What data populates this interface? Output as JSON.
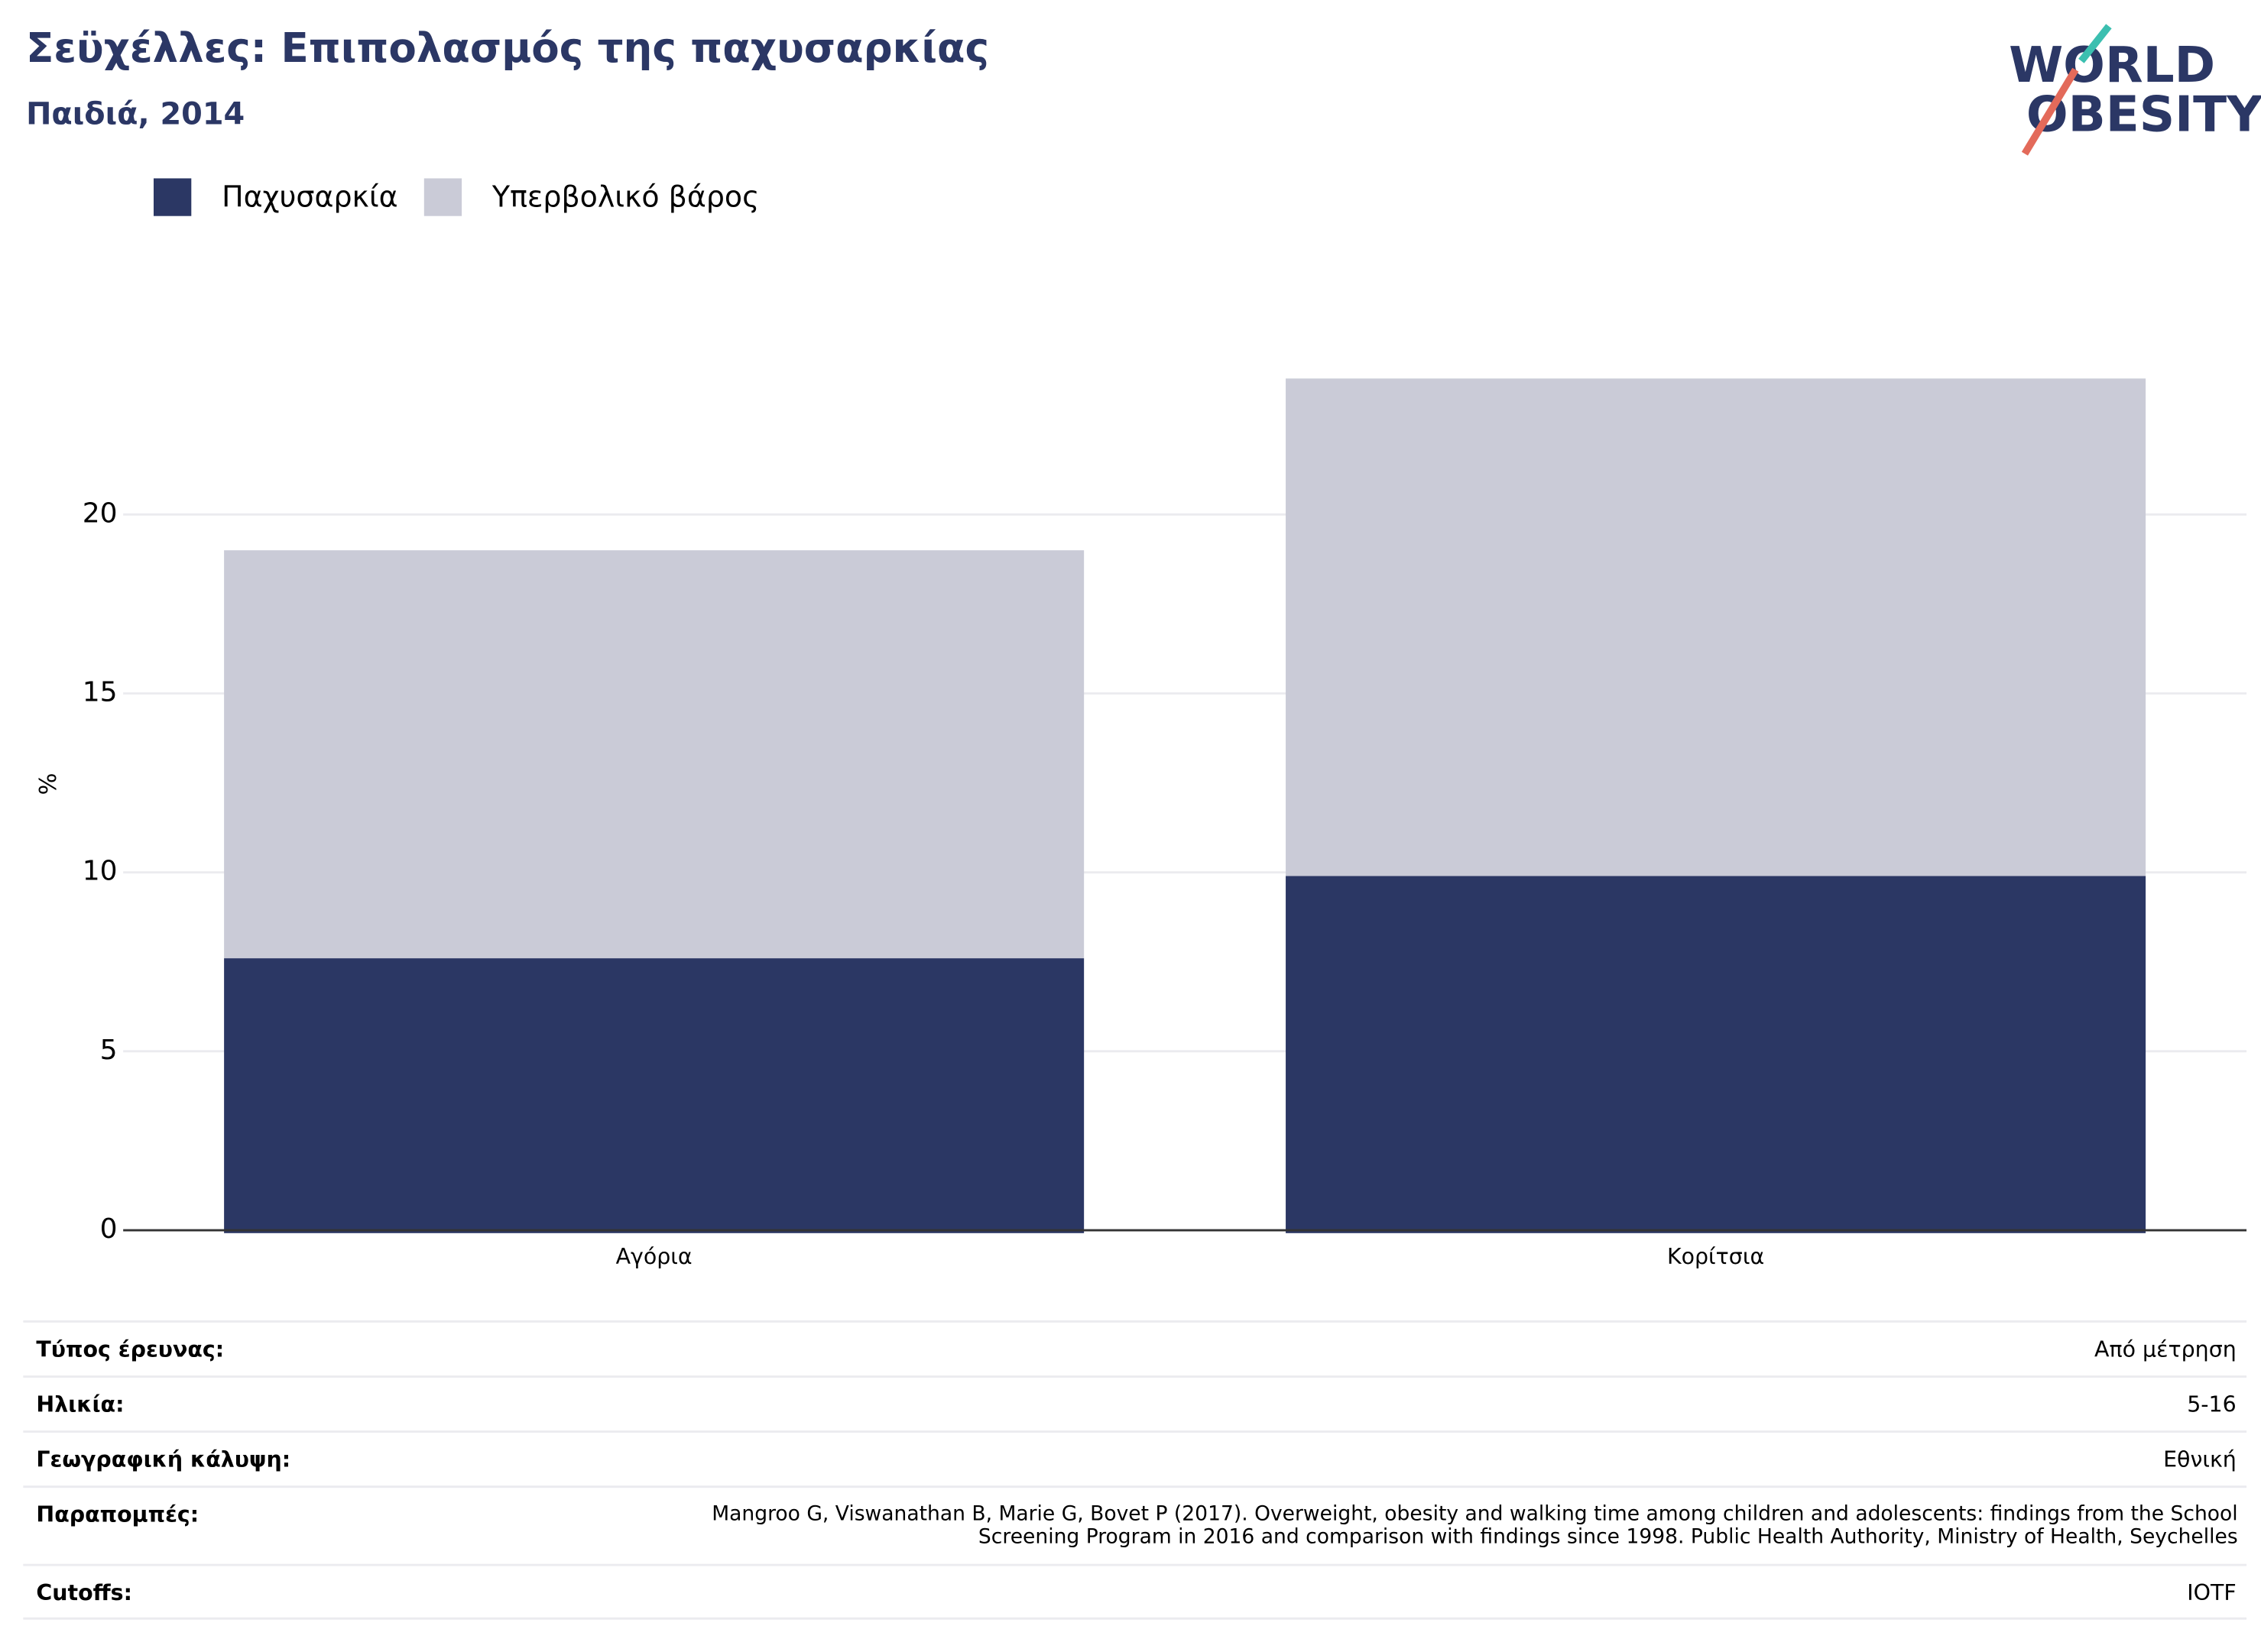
{
  "chart_data": {
    "type": "stacked_bar",
    "title": "Σεϋχέλλες: Επιπολασμός της παχυσαρκίας",
    "subtitle": "Παιδιά, 2014",
    "y_label": "%",
    "categories": [
      "Αγόρια",
      "Κορίτσια"
    ],
    "series": [
      {
        "name": "Παχυσαρκία",
        "color": "#2b3764",
        "values": [
          7.6,
          9.9
        ]
      },
      {
        "name": "Υπερβολικό βάρος",
        "color": "#cacbd7",
        "values": [
          11.4,
          13.9
        ]
      }
    ],
    "ylim": [
      0,
      25
    ],
    "yticks": [
      0,
      5,
      10,
      15,
      20
    ],
    "grid": true,
    "legend": "top-left"
  },
  "logo": [
    "WORLD",
    "OBESITY"
  ],
  "info_table": {
    "rows": [
      [
        "Τύπος έρευνας:",
        "Από μέτρηση"
      ],
      [
        "Ηλικία:",
        "5-16"
      ],
      [
        "Γεωγραφική κάλυψη:",
        "Εθνική"
      ],
      [
        "Παραπομπές:",
        "Mangroo G, Viswanathan B, Marie G, Bovet P (2017). Overweight, obesity and walking time among children and adolescents: findings from the School Screening Program in 2016 and comparison with findings since 1998. Public Health Authority, Ministry of Health, Seychelles"
      ],
      [
        "Cutoffs:",
        "IOTF"
      ]
    ]
  }
}
